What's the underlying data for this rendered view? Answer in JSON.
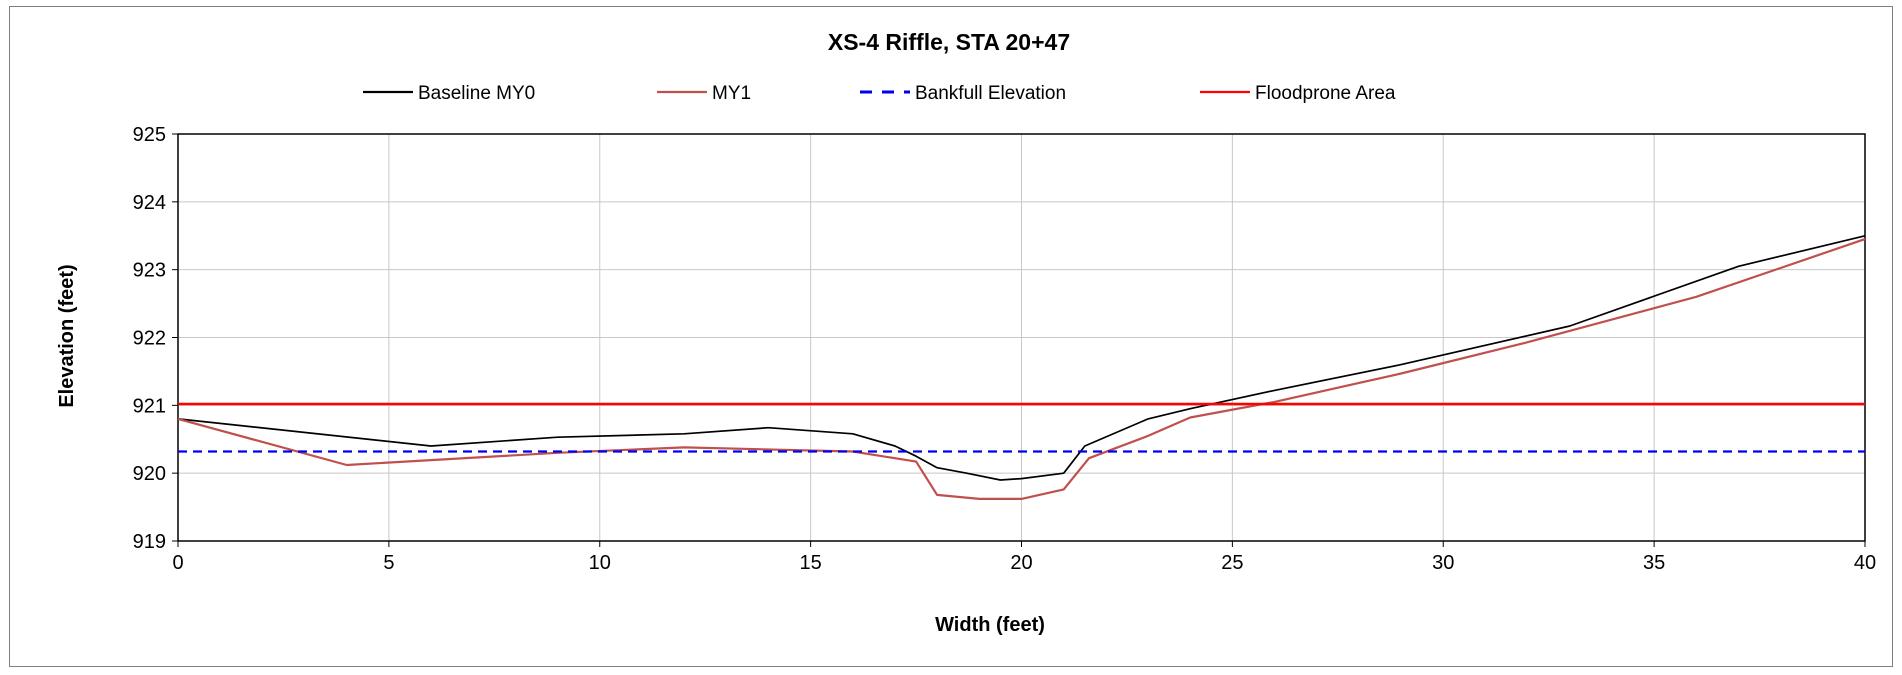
{
  "chart_data": {
    "type": "line",
    "title": "XS-4 Riffle, STA 20+47",
    "xlabel": "Width (feet)",
    "ylabel": "Elevation (feet)",
    "xlim": [
      0,
      40
    ],
    "ylim": [
      919,
      925
    ],
    "x_ticks": [
      "0",
      "5",
      "10",
      "15",
      "20",
      "25",
      "30",
      "35",
      "40"
    ],
    "y_ticks": [
      "919",
      "920",
      "921",
      "922",
      "923",
      "924",
      "925"
    ],
    "grid": true,
    "legend_position": "top",
    "series": [
      {
        "name": "Baseline MY0",
        "color": "#000000",
        "dash": "solid",
        "points": [
          [
            0,
            920.8
          ],
          [
            6,
            920.4
          ],
          [
            9,
            920.53
          ],
          [
            12,
            920.58
          ],
          [
            14,
            920.67
          ],
          [
            16,
            920.58
          ],
          [
            17,
            920.4
          ],
          [
            17.5,
            920.25
          ],
          [
            18,
            920.08
          ],
          [
            18.7,
            920.0
          ],
          [
            19.5,
            919.9
          ],
          [
            20,
            919.92
          ],
          [
            21,
            920.0
          ],
          [
            21.5,
            920.4
          ],
          [
            23,
            920.8
          ],
          [
            24,
            920.95
          ],
          [
            26,
            921.22
          ],
          [
            29,
            921.6
          ],
          [
            33,
            922.17
          ],
          [
            37,
            923.05
          ],
          [
            40,
            923.5
          ]
        ]
      },
      {
        "name": "MY1",
        "color": "#c0504d",
        "dash": "solid",
        "points": [
          [
            0,
            920.8
          ],
          [
            4,
            920.12
          ],
          [
            9,
            920.3
          ],
          [
            12,
            920.38
          ],
          [
            16,
            920.32
          ],
          [
            17.5,
            920.17
          ],
          [
            18,
            919.68
          ],
          [
            19,
            919.62
          ],
          [
            20,
            919.62
          ],
          [
            21,
            919.76
          ],
          [
            21.6,
            920.22
          ],
          [
            23,
            920.55
          ],
          [
            24,
            920.82
          ],
          [
            26,
            921.05
          ],
          [
            29,
            921.47
          ],
          [
            32,
            921.93
          ],
          [
            36,
            922.6
          ],
          [
            40,
            923.45
          ]
        ]
      },
      {
        "name": "Bankfull Elevation",
        "color": "#0000ee",
        "dash": "dashed",
        "points": [
          [
            0,
            920.32
          ],
          [
            40,
            920.32
          ]
        ]
      },
      {
        "name": "Floodprone Area",
        "color": "#ff0000",
        "dash": "solid",
        "points": [
          [
            0,
            921.02
          ],
          [
            40,
            921.02
          ]
        ]
      }
    ]
  }
}
